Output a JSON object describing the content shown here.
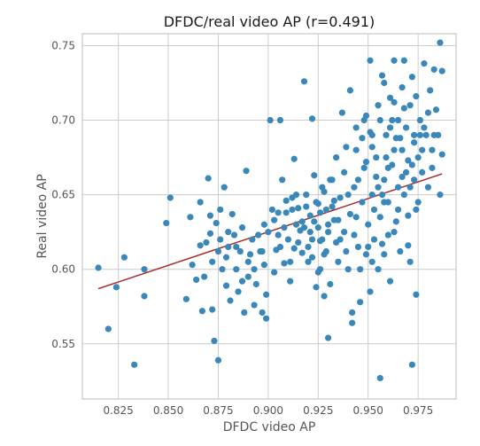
{
  "chart_data": {
    "type": "scatter",
    "title": "DFDC/real video AP (r=0.491)",
    "xlabel": "DFDC video AP",
    "ylabel": "Real video AP",
    "xlim": [
      0.807,
      0.994
    ],
    "ylim": [
      0.513,
      0.758
    ],
    "xticks": [
      0.825,
      0.85,
      0.875,
      0.9,
      0.925,
      0.95,
      0.975
    ],
    "xtick_labels": [
      "0.825",
      "0.850",
      "0.875",
      "0.900",
      "0.925",
      "0.950",
      "0.975"
    ],
    "yticks": [
      0.55,
      0.6,
      0.65,
      0.7,
      0.75
    ],
    "ytick_labels": [
      "0.55",
      "0.60",
      "0.65",
      "0.70",
      "0.75"
    ],
    "grid": true,
    "colors": {
      "points": "#3a87b9",
      "trend": "#a52a2a",
      "grid": "#cccccc"
    },
    "trend_line": {
      "x": [
        0.815,
        0.987
      ],
      "y": [
        0.587,
        0.664
      ]
    },
    "series": [
      {
        "points": [
          [
            0.815,
            0.601
          ],
          [
            0.82,
            0.56
          ],
          [
            0.824,
            0.588
          ],
          [
            0.828,
            0.608
          ],
          [
            0.833,
            0.536
          ],
          [
            0.838,
            0.6
          ],
          [
            0.838,
            0.582
          ],
          [
            0.849,
            0.631
          ],
          [
            0.851,
            0.648
          ],
          [
            0.859,
            0.58
          ],
          [
            0.861,
            0.635
          ],
          [
            0.864,
            0.593
          ],
          [
            0.866,
            0.645
          ],
          [
            0.867,
            0.572
          ],
          [
            0.868,
            0.595
          ],
          [
            0.869,
            0.618
          ],
          [
            0.87,
            0.661
          ],
          [
            0.871,
            0.624
          ],
          [
            0.872,
            0.605
          ],
          [
            0.872,
            0.573
          ],
          [
            0.873,
            0.552
          ],
          [
            0.874,
            0.631
          ],
          [
            0.875,
            0.539
          ],
          [
            0.875,
            0.612
          ],
          [
            0.876,
            0.64
          ],
          [
            0.877,
            0.6
          ],
          [
            0.878,
            0.655
          ],
          [
            0.879,
            0.589
          ],
          [
            0.88,
            0.625
          ],
          [
            0.88,
            0.615
          ],
          [
            0.881,
            0.579
          ],
          [
            0.882,
            0.637
          ],
          [
            0.883,
            0.623
          ],
          [
            0.884,
            0.6
          ],
          [
            0.885,
            0.585
          ],
          [
            0.886,
            0.612
          ],
          [
            0.887,
            0.628
          ],
          [
            0.888,
            0.571
          ],
          [
            0.889,
            0.666
          ],
          [
            0.89,
            0.595
          ],
          [
            0.891,
            0.61
          ],
          [
            0.892,
            0.62
          ],
          [
            0.893,
            0.576
          ],
          [
            0.894,
            0.59
          ],
          [
            0.895,
            0.623
          ],
          [
            0.896,
            0.612
          ],
          [
            0.897,
            0.571
          ],
          [
            0.898,
            0.603
          ],
          [
            0.899,
            0.583
          ],
          [
            0.899,
            0.567
          ],
          [
            0.9,
            0.625
          ],
          [
            0.901,
            0.7
          ],
          [
            0.902,
            0.64
          ],
          [
            0.903,
            0.633
          ],
          [
            0.904,
            0.613
          ],
          [
            0.905,
            0.623
          ],
          [
            0.906,
            0.7
          ],
          [
            0.907,
            0.66
          ],
          [
            0.908,
            0.604
          ],
          [
            0.909,
            0.638
          ],
          [
            0.91,
            0.62
          ],
          [
            0.911,
            0.592
          ],
          [
            0.912,
            0.648
          ],
          [
            0.913,
            0.614
          ],
          [
            0.913,
            0.674
          ],
          [
            0.914,
            0.63
          ],
          [
            0.915,
            0.641
          ],
          [
            0.916,
            0.626
          ],
          [
            0.917,
            0.611
          ],
          [
            0.918,
            0.726
          ],
          [
            0.919,
            0.65
          ],
          [
            0.92,
            0.605
          ],
          [
            0.921,
            0.636
          ],
          [
            0.922,
            0.701
          ],
          [
            0.922,
            0.62
          ],
          [
            0.923,
            0.663
          ],
          [
            0.924,
            0.645
          ],
          [
            0.925,
            0.598
          ],
          [
            0.925,
            0.628
          ],
          [
            0.926,
            0.619
          ],
          [
            0.927,
            0.655
          ],
          [
            0.928,
            0.582
          ],
          [
            0.928,
            0.61
          ],
          [
            0.929,
            0.64
          ],
          [
            0.93,
            0.625
          ],
          [
            0.93,
            0.554
          ],
          [
            0.931,
            0.59
          ],
          [
            0.932,
            0.66
          ],
          [
            0.933,
            0.633
          ],
          [
            0.934,
            0.618
          ],
          [
            0.935,
            0.605
          ],
          [
            0.936,
            0.648
          ],
          [
            0.937,
            0.705
          ],
          [
            0.938,
            0.625
          ],
          [
            0.939,
            0.612
          ],
          [
            0.939,
            0.682
          ],
          [
            0.94,
            0.6
          ],
          [
            0.941,
            0.637
          ],
          [
            0.941,
            0.72
          ],
          [
            0.942,
            0.571
          ],
          [
            0.943,
            0.623
          ],
          [
            0.943,
            0.655
          ],
          [
            0.944,
            0.695
          ],
          [
            0.945,
            0.615
          ],
          [
            0.946,
            0.6
          ],
          [
            0.947,
            0.645
          ],
          [
            0.948,
            0.668
          ],
          [
            0.949,
            0.61
          ],
          [
            0.949,
            0.703
          ],
          [
            0.95,
            0.63
          ],
          [
            0.951,
            0.74
          ],
          [
            0.951,
            0.585
          ],
          [
            0.952,
            0.65
          ],
          [
            0.952,
            0.69
          ],
          [
            0.953,
            0.62
          ],
          [
            0.954,
            0.675
          ],
          [
            0.955,
            0.6
          ],
          [
            0.955,
            0.71
          ],
          [
            0.956,
            0.527
          ],
          [
            0.956,
            0.635
          ],
          [
            0.957,
            0.73
          ],
          [
            0.958,
            0.66
          ],
          [
            0.958,
            0.61
          ],
          [
            0.959,
            0.69
          ],
          [
            0.96,
            0.645
          ],
          [
            0.961,
            0.715
          ],
          [
            0.961,
            0.592
          ],
          [
            0.962,
            0.67
          ],
          [
            0.963,
            0.625
          ],
          [
            0.963,
            0.74
          ],
          [
            0.964,
            0.688
          ],
          [
            0.965,
            0.655
          ],
          [
            0.965,
            0.7
          ],
          [
            0.966,
            0.612
          ],
          [
            0.967,
            0.68
          ],
          [
            0.967,
            0.722
          ],
          [
            0.968,
            0.65
          ],
          [
            0.968,
            0.74
          ],
          [
            0.969,
            0.695
          ],
          [
            0.97,
            0.636
          ],
          [
            0.97,
            0.673
          ],
          [
            0.971,
            0.71
          ],
          [
            0.971,
            0.605
          ],
          [
            0.972,
            0.729
          ],
          [
            0.972,
            0.536
          ],
          [
            0.973,
            0.66
          ],
          [
            0.973,
            0.69
          ],
          [
            0.974,
            0.583
          ],
          [
            0.974,
            0.716
          ],
          [
            0.975,
            0.645
          ],
          [
            0.975,
            0.675
          ],
          [
            0.976,
            0.7
          ],
          [
            0.977,
            0.665
          ],
          [
            0.978,
            0.738
          ],
          [
            0.979,
            0.69
          ],
          [
            0.98,
            0.655
          ],
          [
            0.981,
            0.72
          ],
          [
            0.982,
            0.68
          ],
          [
            0.983,
            0.734
          ],
          [
            0.984,
            0.707
          ],
          [
            0.985,
            0.69
          ],
          [
            0.986,
            0.752
          ],
          [
            0.986,
            0.65
          ],
          [
            0.987,
            0.677
          ],
          [
            0.987,
            0.733
          ],
          [
            0.958,
            0.725
          ],
          [
            0.952,
            0.682
          ],
          [
            0.96,
            0.668
          ],
          [
            0.945,
            0.66
          ],
          [
            0.948,
            0.7
          ],
          [
            0.962,
            0.7
          ],
          [
            0.966,
            0.688
          ],
          [
            0.957,
            0.65
          ],
          [
            0.953,
            0.64
          ],
          [
            0.964,
            0.632
          ],
          [
            0.969,
            0.665
          ],
          [
            0.974,
            0.64
          ],
          [
            0.97,
            0.616
          ],
          [
            0.96,
            0.623
          ],
          [
            0.95,
            0.615
          ],
          [
            0.935,
            0.633
          ],
          [
            0.927,
            0.62
          ],
          [
            0.92,
            0.615
          ],
          [
            0.918,
            0.628
          ],
          [
            0.932,
            0.642
          ],
          [
            0.94,
            0.65
          ],
          [
            0.929,
            0.612
          ],
          [
            0.926,
            0.6
          ],
          [
            0.924,
            0.588
          ],
          [
            0.915,
            0.618
          ],
          [
            0.911,
            0.605
          ],
          [
            0.908,
            0.628
          ],
          [
            0.923,
            0.632
          ],
          [
            0.936,
            0.62
          ],
          [
            0.944,
            0.635
          ],
          [
            0.958,
            0.645
          ],
          [
            0.963,
            0.68
          ],
          [
            0.955,
            0.655
          ],
          [
            0.961,
            0.695
          ],
          [
            0.968,
            0.708
          ],
          [
            0.976,
            0.69
          ],
          [
            0.972,
            0.67
          ],
          [
            0.98,
            0.705
          ],
          [
            0.942,
            0.564
          ],
          [
            0.946,
            0.578
          ],
          [
            0.922,
            0.608
          ],
          [
            0.93,
            0.63
          ],
          [
            0.933,
            0.646
          ],
          [
            0.926,
            0.638
          ],
          [
            0.919,
            0.642
          ],
          [
            0.914,
            0.65
          ],
          [
            0.906,
            0.615
          ],
          [
            0.903,
            0.598
          ],
          [
            0.897,
            0.612
          ],
          [
            0.89,
            0.605
          ],
          [
            0.884,
            0.615
          ],
          [
            0.879,
            0.608
          ],
          [
            0.876,
            0.62
          ],
          [
            0.871,
            0.636
          ],
          [
            0.866,
            0.616
          ],
          [
            0.862,
            0.603
          ],
          [
            0.887,
            0.592
          ],
          [
            0.893,
            0.6
          ],
          [
            0.898,
            0.63
          ],
          [
            0.952,
            0.605
          ],
          [
            0.957,
            0.617
          ],
          [
            0.965,
            0.64
          ],
          [
            0.971,
            0.655
          ],
          [
            0.977,
            0.68
          ],
          [
            0.983,
            0.69
          ],
          [
            0.949,
            0.672
          ],
          [
            0.944,
            0.68
          ],
          [
            0.938,
            0.665
          ],
          [
            0.934,
            0.675
          ],
          [
            0.931,
            0.66
          ],
          [
            0.928,
            0.652
          ],
          [
            0.925,
            0.644
          ],
          [
            0.921,
            0.625
          ],
          [
            0.917,
            0.632
          ],
          [
            0.912,
            0.64
          ],
          [
            0.909,
            0.646
          ],
          [
            0.905,
            0.638
          ],
          [
            0.954,
            0.662
          ],
          [
            0.959,
            0.675
          ],
          [
            0.967,
            0.662
          ],
          [
            0.973,
            0.685
          ],
          [
            0.978,
            0.695
          ],
          [
            0.982,
            0.668
          ],
          [
            0.963,
            0.712
          ],
          [
            0.956,
            0.7
          ],
          [
            0.951,
            0.692
          ],
          [
            0.947,
            0.688
          ]
        ]
      }
    ]
  }
}
